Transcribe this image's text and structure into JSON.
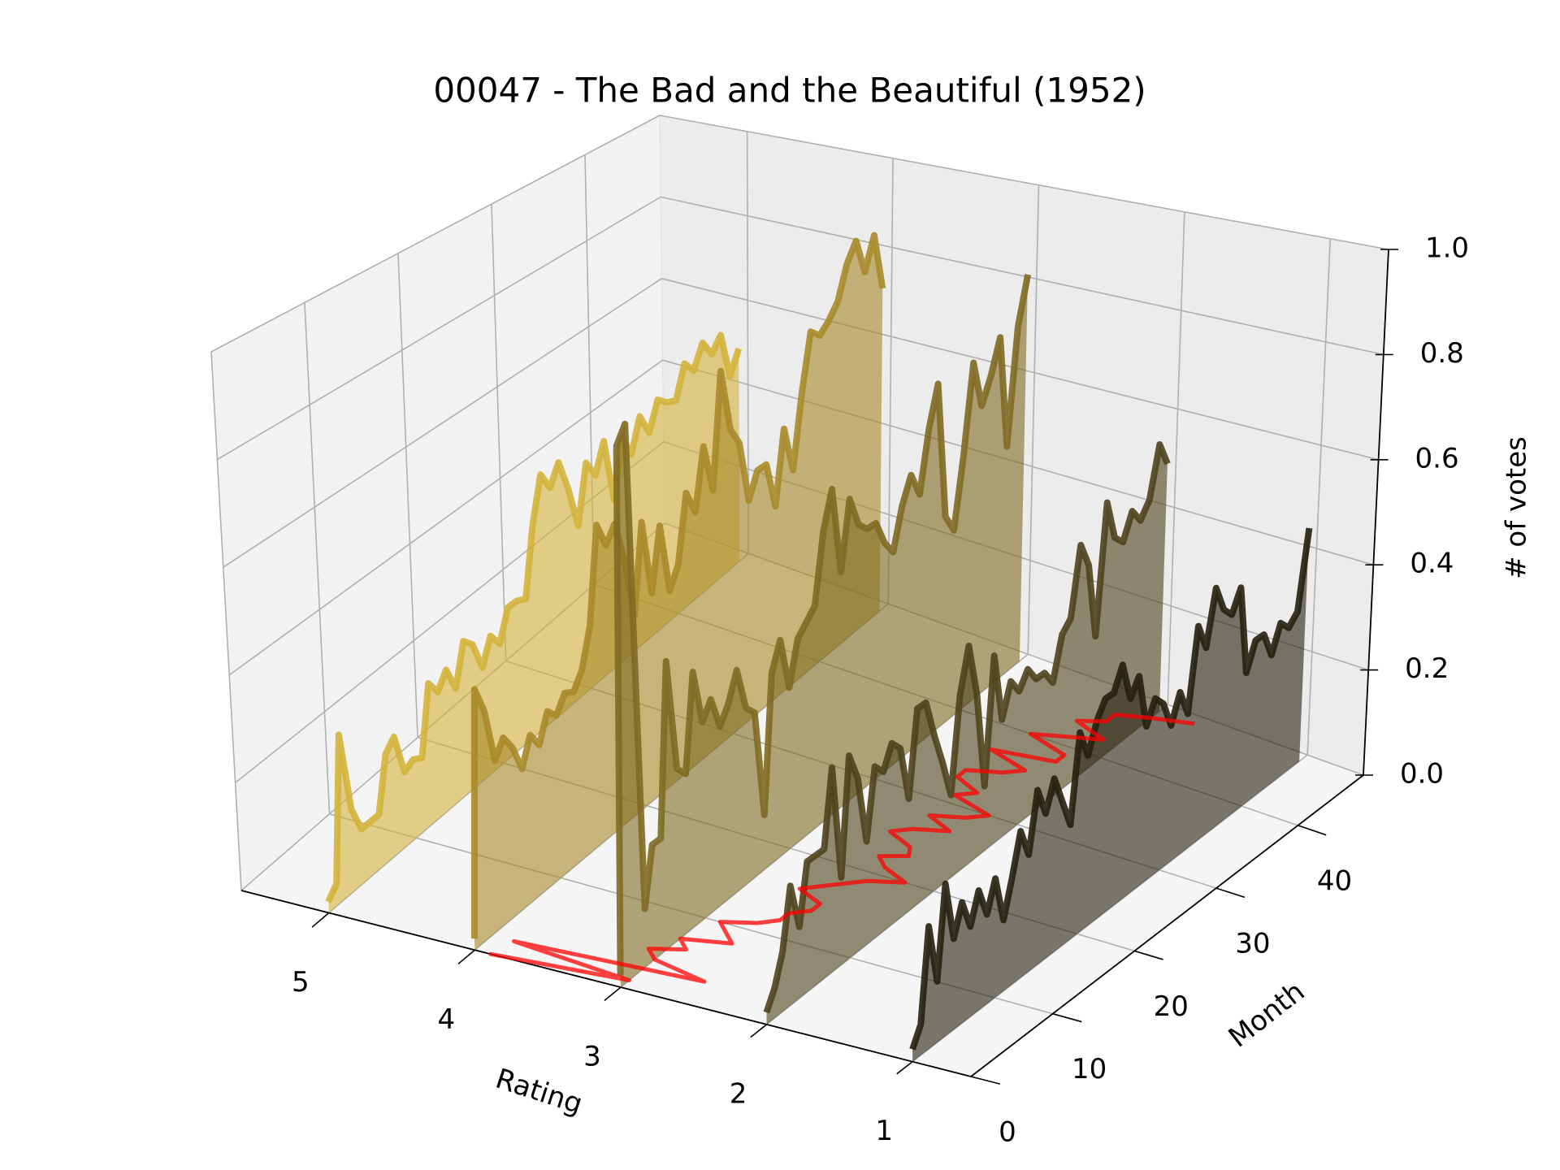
{
  "chart_data": {
    "type": "line3d",
    "title": "00047 - The Bad and the Beautiful (1952)",
    "xlabel": "Rating",
    "ylabel": "Month",
    "zlabel": "# of votes",
    "xlim": [
      5.6,
      0.6
    ],
    "xticks": [
      1,
      2,
      3,
      4,
      5
    ],
    "ylim": [
      0,
      48
    ],
    "yticks": [
      0,
      10,
      20,
      30,
      40
    ],
    "zlim": [
      0,
      1
    ],
    "zticks": [
      {
        "value": 0,
        "label": "0.0"
      },
      0.2,
      0.4,
      0.6,
      0.8,
      {
        "value": 1,
        "label": "1.0"
      }
    ],
    "grid": true,
    "x": [
      0,
      1,
      2,
      3,
      4,
      5,
      6,
      7,
      8,
      9,
      10,
      11,
      12,
      13,
      14,
      15,
      16,
      17,
      18,
      19,
      20,
      21,
      22,
      23,
      24,
      25,
      26,
      27,
      28,
      29,
      30,
      31,
      32,
      33,
      34,
      35,
      36,
      37,
      38,
      39,
      40,
      41,
      42,
      43,
      44,
      45,
      46,
      47
    ],
    "series": [
      {
        "rating": 5,
        "color": "#d4b23a",
        "values": [
          0.02,
          0.04,
          0.3,
          0.15,
          0.1,
          0.1,
          0.1,
          0.2,
          0.22,
          0.14,
          0.15,
          0.14,
          0.27,
          0.24,
          0.27,
          0.22,
          0.3,
          0.28,
          0.22,
          0.27,
          0.24,
          0.3,
          0.3,
          0.29,
          0.43,
          0.52,
          0.48,
          0.52,
          0.45,
          0.36,
          0.48,
          0.44,
          0.5,
          0.36,
          0.48,
          0.43,
          0.5,
          0.45,
          0.51,
          0.49,
          0.48,
          0.55,
          0.52,
          0.57,
          0.53,
          0.56,
          0.45,
          0.5
        ]
      },
      {
        "rating": 4,
        "color": "#a8892a",
        "values": [
          0.02,
          0.45,
          0.4,
          0.3,
          0.33,
          0.3,
          0.25,
          0.3,
          0.27,
          0.32,
          0.3,
          0.33,
          0.32,
          0.35,
          0.42,
          0.6,
          0.55,
          0.58,
          0.5,
          0.38,
          0.55,
          0.4,
          0.52,
          0.38,
          0.42,
          0.55,
          0.5,
          0.62,
          0.52,
          0.75,
          0.62,
          0.58,
          0.45,
          0.5,
          0.5,
          0.4,
          0.55,
          0.45,
          0.6,
          0.72,
          0.7,
          0.72,
          0.75,
          0.82,
          0.86,
          0.78,
          0.85,
          0.72
        ]
      },
      {
        "rating": 3,
        "color": "#7f6a22",
        "values": [
          0.02,
          0.92,
          0.95,
          0.1,
          0.2,
          0.2,
          0.5,
          0.3,
          0.28,
          0.45,
          0.35,
          0.38,
          0.32,
          0.35,
          0.4,
          0.32,
          0.3,
          0.1,
          0.35,
          0.4,
          0.3,
          0.38,
          0.4,
          0.42,
          0.55,
          0.62,
          0.45,
          0.58,
          0.52,
          0.5,
          0.5,
          0.45,
          0.42,
          0.5,
          0.55,
          0.5,
          0.62,
          0.7,
          0.42,
          0.38,
          0.52,
          0.7,
          0.6,
          0.65,
          0.72,
          0.48,
          0.72,
          0.82
        ]
      },
      {
        "rating": 2,
        "color": "#4e421c",
        "values": [
          0.02,
          0.05,
          0.1,
          0.2,
          0.12,
          0.22,
          0.22,
          0.22,
          0.35,
          0.15,
          0.35,
          0.3,
          0.18,
          0.3,
          0.28,
          0.32,
          0.3,
          0.2,
          0.35,
          0.35,
          0.28,
          0.22,
          0.15,
          0.32,
          0.4,
          0.3,
          0.12,
          0.35,
          0.22,
          0.28,
          0.25,
          0.28,
          0.25,
          0.25,
          0.22,
          0.3,
          0.32,
          0.45,
          0.4,
          0.25,
          0.5,
          0.42,
          0.4,
          0.45,
          0.42,
          0.45,
          0.55,
          0.5
        ]
      },
      {
        "rating": 1,
        "color": "#25200e",
        "values": [
          0.02,
          0.05,
          0.2,
          0.1,
          0.25,
          0.15,
          0.2,
          0.15,
          0.2,
          0.15,
          0.2,
          0.12,
          0.18,
          0.25,
          0.2,
          0.3,
          0.25,
          0.3,
          0.25,
          0.2,
          0.35,
          0.3,
          0.35,
          0.38,
          0.38,
          0.42,
          0.35,
          0.38,
          0.28,
          0.32,
          0.3,
          0.25,
          0.3,
          0.25,
          0.4,
          0.35,
          0.45,
          0.4,
          0.38,
          0.42,
          0.25,
          0.3,
          0.3,
          0.25,
          0.3,
          0.28,
          0.3,
          0.45
        ]
      }
    ],
    "mean_rating": {
      "color": "#ff0000",
      "values": [
        3.9,
        3.0,
        3.85,
        2.6,
        3.0,
        3.1,
        2.9,
        3.0,
        2.7,
        2.8,
        2.9,
        2.7,
        2.6,
        2.6,
        2.5,
        2.5,
        2.7,
        2.6,
        2.5,
        2.4,
        2.2,
        2.4,
        2.5,
        2.35,
        2.4,
        2.6,
        2.5,
        2.3,
        2.5,
        2.3,
        2.2,
        2.5,
        2.4,
        2.6,
        2.6,
        2.4,
        2.3,
        2.6,
        2.2,
        2.2,
        2.5,
        2.3,
        2.1,
        2.35,
        2.2,
        2.2,
        2.0,
        1.75
      ]
    }
  }
}
